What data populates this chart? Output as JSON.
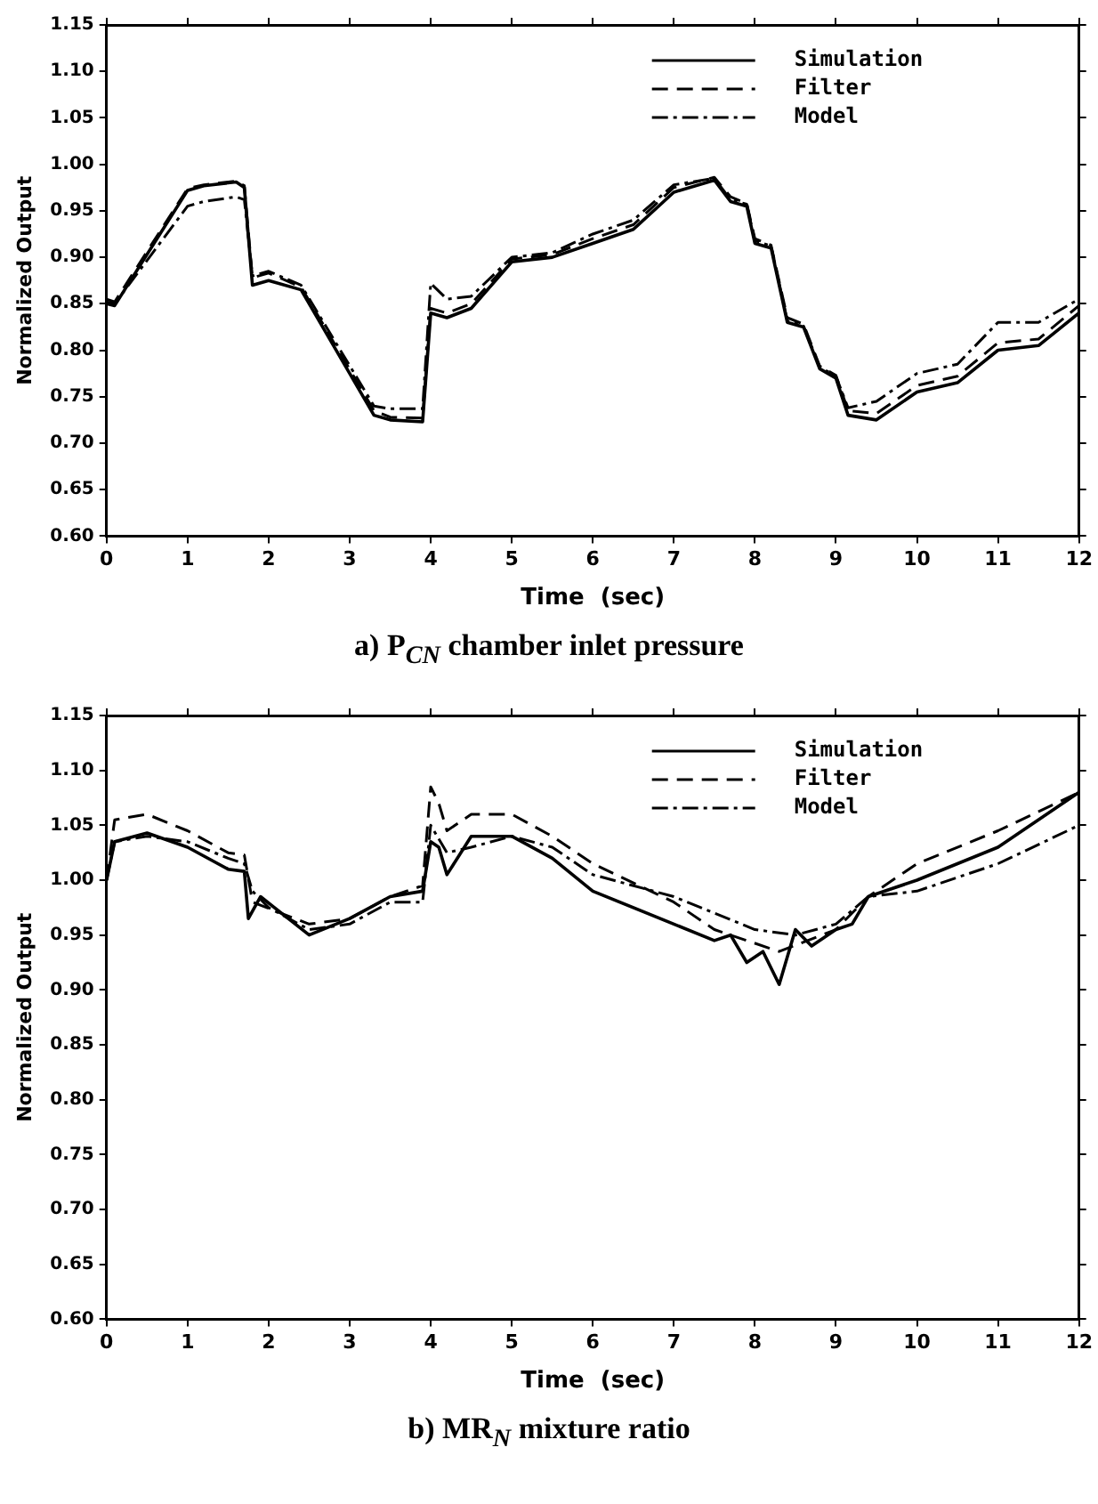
{
  "chart_data": [
    {
      "type": "line",
      "title": "a)  P$_{CN}$ chamber inlet pressure",
      "xlabel": "Time  (sec)",
      "ylabel": "Normalized Output",
      "xlim": [
        0,
        12
      ],
      "xticks": [
        0,
        1,
        2,
        3,
        4,
        5,
        6,
        7,
        8,
        9,
        10,
        11,
        12
      ],
      "ylim": [
        0.6,
        1.15
      ],
      "yticks": [
        {
          "value": 0.6,
          "label": "0.60"
        },
        {
          "value": 0.65,
          "label": "0.65"
        },
        {
          "value": 0.7,
          "label": "0.70"
        },
        {
          "value": 0.75,
          "label": "0.75"
        },
        {
          "value": 0.8,
          "label": "0.80"
        },
        {
          "value": 0.85,
          "label": "0.85"
        },
        {
          "value": 0.9,
          "label": "0.90"
        },
        {
          "value": 0.95,
          "label": "0.95"
        },
        {
          "value": 1.0,
          "label": "1.00"
        },
        {
          "value": 1.05,
          "label": "1.05"
        },
        {
          "value": 1.1,
          "label": "1.10"
        },
        {
          "value": 1.15,
          "label": "1.15"
        }
      ],
      "grid": false,
      "legend": "top right",
      "marker": "none",
      "series": [
        {
          "name": "Simulation",
          "color": "#000000",
          "line_style": "solid",
          "x": [
            0,
            0.1,
            1.0,
            1.2,
            1.6,
            1.7,
            1.8,
            2.0,
            2.4,
            3.3,
            3.5,
            3.9,
            4.0,
            4.2,
            4.5,
            5.0,
            5.5,
            6.0,
            6.5,
            7.0,
            7.5,
            7.7,
            7.9,
            8.0,
            8.2,
            8.4,
            8.6,
            8.8,
            9.0,
            9.15,
            9.5,
            10,
            10.5,
            11,
            11.5,
            12
          ],
          "values": [
            0.85,
            0.848,
            0.972,
            0.977,
            0.981,
            0.975,
            0.87,
            0.875,
            0.865,
            0.73,
            0.725,
            0.723,
            0.84,
            0.835,
            0.845,
            0.895,
            0.9,
            0.915,
            0.93,
            0.97,
            0.983,
            0.96,
            0.955,
            0.915,
            0.91,
            0.83,
            0.825,
            0.78,
            0.77,
            0.73,
            0.725,
            0.755,
            0.765,
            0.8,
            0.805,
            0.84
          ]
        },
        {
          "name": "Filter",
          "color": "#000000",
          "line_style": "dashed",
          "x": [
            0,
            0.1,
            1.0,
            1.2,
            1.6,
            1.7,
            1.8,
            2.0,
            2.4,
            3.3,
            3.5,
            3.9,
            4.0,
            4.2,
            4.5,
            5.0,
            5.5,
            6.0,
            6.5,
            7.0,
            7.5,
            7.7,
            7.9,
            8.0,
            8.2,
            8.4,
            8.6,
            8.8,
            9.0,
            9.15,
            9.5,
            10,
            10.5,
            11,
            11.5,
            12
          ],
          "values": [
            0.855,
            0.852,
            0.974,
            0.978,
            0.982,
            0.977,
            0.878,
            0.883,
            0.868,
            0.735,
            0.728,
            0.727,
            0.845,
            0.84,
            0.85,
            0.898,
            0.903,
            0.92,
            0.935,
            0.975,
            0.986,
            0.965,
            0.958,
            0.92,
            0.913,
            0.835,
            0.828,
            0.783,
            0.773,
            0.735,
            0.732,
            0.762,
            0.772,
            0.808,
            0.812,
            0.848
          ]
        },
        {
          "name": "Model",
          "color": "#000000",
          "line_style": "dashdot",
          "x": [
            0,
            0.1,
            1.0,
            1.2,
            1.6,
            1.7,
            1.8,
            2.0,
            2.4,
            3.3,
            3.5,
            3.9,
            4.0,
            4.2,
            4.5,
            5.0,
            5.5,
            6.0,
            6.5,
            7.0,
            7.5,
            7.7,
            7.9,
            8.0,
            8.2,
            8.4,
            8.6,
            8.8,
            9.0,
            9.15,
            9.5,
            10,
            10.5,
            11,
            11.5,
            12
          ],
          "values": [
            0.852,
            0.85,
            0.955,
            0.96,
            0.965,
            0.962,
            0.88,
            0.885,
            0.87,
            0.74,
            0.737,
            0.737,
            0.872,
            0.855,
            0.858,
            0.9,
            0.905,
            0.925,
            0.94,
            0.978,
            0.985,
            0.962,
            0.957,
            0.918,
            0.912,
            0.832,
            0.826,
            0.782,
            0.772,
            0.738,
            0.745,
            0.775,
            0.785,
            0.83,
            0.83,
            0.855
          ]
        }
      ]
    },
    {
      "type": "line",
      "title": "b)  MR$_{N}$ mixture ratio",
      "xlabel": "Time  (sec)",
      "ylabel": "Normalized Output",
      "xlim": [
        0,
        12
      ],
      "xticks": [
        0,
        1,
        2,
        3,
        4,
        5,
        6,
        7,
        8,
        9,
        10,
        11,
        12
      ],
      "ylim": [
        0.6,
        1.15
      ],
      "yticks": [
        {
          "value": 0.6,
          "label": "0.60"
        },
        {
          "value": 0.65,
          "label": "0.65"
        },
        {
          "value": 0.7,
          "label": "0.70"
        },
        {
          "value": 0.75,
          "label": "0.75"
        },
        {
          "value": 0.8,
          "label": "0.80"
        },
        {
          "value": 0.85,
          "label": "0.85"
        },
        {
          "value": 0.9,
          "label": "0.90"
        },
        {
          "value": 0.95,
          "label": "0.95"
        },
        {
          "value": 1.0,
          "label": "1.00"
        },
        {
          "value": 1.05,
          "label": "1.05"
        },
        {
          "value": 1.1,
          "label": "1.10"
        },
        {
          "value": 1.15,
          "label": "1.15"
        }
      ],
      "grid": false,
      "legend": "top right",
      "marker": "none",
      "series": [
        {
          "name": "Simulation",
          "color": "#000000",
          "line_style": "solid",
          "x": [
            0,
            0.1,
            0.5,
            1.0,
            1.5,
            1.7,
            1.75,
            1.9,
            2.5,
            3.0,
            3.5,
            3.9,
            4.0,
            4.1,
            4.2,
            4.5,
            5.0,
            5.5,
            6.0,
            7.0,
            7.5,
            7.7,
            7.9,
            8.1,
            8.3,
            8.5,
            8.7,
            9.0,
            9.2,
            9.4,
            10,
            11,
            12
          ],
          "values": [
            1.0,
            1.035,
            1.043,
            1.03,
            1.01,
            1.008,
            0.965,
            0.985,
            0.95,
            0.965,
            0.985,
            0.99,
            1.035,
            1.03,
            1.005,
            1.04,
            1.04,
            1.02,
            0.99,
            0.96,
            0.945,
            0.95,
            0.925,
            0.935,
            0.905,
            0.955,
            0.94,
            0.955,
            0.96,
            0.985,
            1.0,
            1.03,
            1.08
          ]
        },
        {
          "name": "Filter",
          "color": "#000000",
          "line_style": "dashed",
          "x": [
            0,
            0.1,
            0.5,
            1.0,
            1.5,
            1.7,
            1.8,
            2.5,
            3.0,
            3.5,
            3.9,
            4.0,
            4.1,
            4.2,
            4.5,
            5.0,
            5.5,
            6.0,
            7.0,
            7.5,
            8.3,
            9.0,
            9.4,
            10,
            11,
            12
          ],
          "values": [
            1.0,
            1.055,
            1.06,
            1.045,
            1.025,
            1.023,
            0.98,
            0.96,
            0.965,
            0.985,
            0.995,
            1.085,
            1.07,
            1.045,
            1.06,
            1.06,
            1.04,
            1.015,
            0.98,
            0.955,
            0.935,
            0.955,
            0.985,
            1.015,
            1.045,
            1.08
          ]
        },
        {
          "name": "Model",
          "color": "#000000",
          "line_style": "dashdot",
          "x": [
            0,
            0.1,
            0.5,
            1.0,
            1.5,
            1.7,
            1.8,
            2.0,
            2.5,
            3.0,
            3.5,
            3.9,
            4.0,
            4.2,
            4.5,
            5.0,
            5.5,
            6.0,
            7.0,
            7.5,
            8.0,
            8.5,
            9.0,
            9.4,
            10,
            11,
            12
          ],
          "values": [
            1.0,
            1.035,
            1.04,
            1.035,
            1.02,
            1.015,
            0.99,
            0.975,
            0.955,
            0.96,
            0.98,
            0.98,
            1.05,
            1.025,
            1.03,
            1.04,
            1.03,
            1.005,
            0.985,
            0.97,
            0.955,
            0.95,
            0.96,
            0.985,
            0.99,
            1.015,
            1.05
          ]
        }
      ]
    }
  ]
}
